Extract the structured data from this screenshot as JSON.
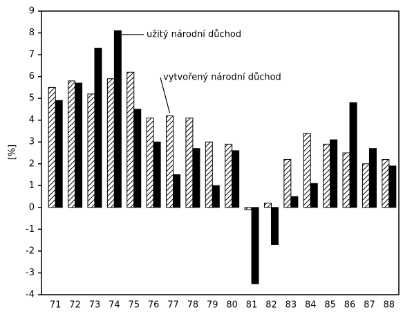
{
  "chart_data": {
    "type": "bar",
    "y_label": "[%]",
    "categories": [
      "71",
      "72",
      "73",
      "74",
      "75",
      "76",
      "77",
      "78",
      "79",
      "80",
      "81",
      "82",
      "83",
      "84",
      "85",
      "86",
      "87",
      "88"
    ],
    "series": [
      {
        "name": "vytvořený národní důchod",
        "color": "#000000",
        "hatch": true,
        "values": [
          5.5,
          5.8,
          5.2,
          5.9,
          6.2,
          4.1,
          4.2,
          4.1,
          3.0,
          2.9,
          -0.1,
          0.2,
          2.2,
          3.4,
          2.9,
          2.5,
          2.0,
          2.2
        ]
      },
      {
        "name": "užitý národní důchod",
        "color": "#000000",
        "hatch": false,
        "values": [
          4.9,
          5.7,
          7.3,
          8.1,
          4.5,
          3.0,
          1.5,
          2.7,
          1.0,
          2.6,
          -3.5,
          -1.7,
          0.5,
          1.1,
          3.1,
          4.8,
          2.7,
          1.9
        ]
      }
    ],
    "ylim": [
      -4,
      9
    ],
    "yticks": [
      -4,
      -3,
      -2,
      -1,
      0,
      1,
      2,
      3,
      4,
      5,
      6,
      7,
      8,
      9
    ]
  }
}
